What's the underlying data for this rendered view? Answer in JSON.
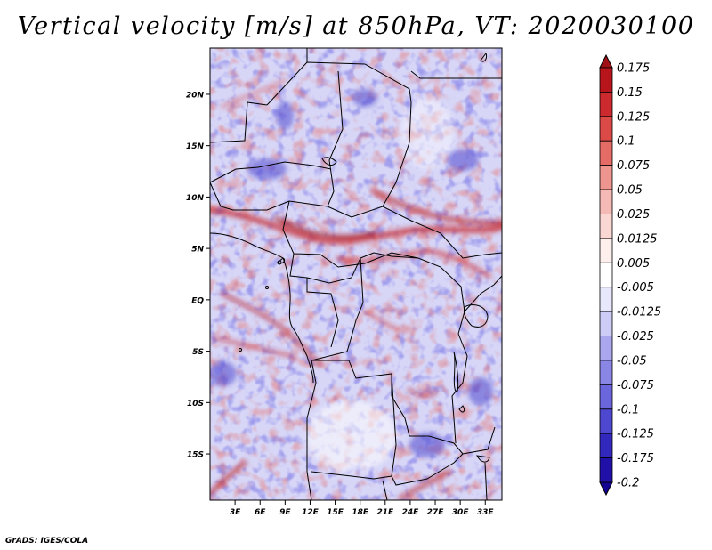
{
  "title": "Vertical velocity [m/s] at 850hPa, VT: 2020030100",
  "footer": "GrADS: IGES/COLA",
  "map": {
    "lat_labels": [
      {
        "lat": 20,
        "label": "20N"
      },
      {
        "lat": 15,
        "label": "15N"
      },
      {
        "lat": 10,
        "label": "10N"
      },
      {
        "lat": 5,
        "label": "5N"
      },
      {
        "lat": 0,
        "label": "EQ"
      },
      {
        "lat": -5,
        "label": "5S"
      },
      {
        "lat": -10,
        "label": "10S"
      },
      {
        "lat": -15,
        "label": "15S"
      }
    ],
    "lon_labels": [
      {
        "lon": 3,
        "label": "3E"
      },
      {
        "lon": 6,
        "label": "6E"
      },
      {
        "lon": 9,
        "label": "9E"
      },
      {
        "lon": 12,
        "label": "12E"
      },
      {
        "lon": 15,
        "label": "15E"
      },
      {
        "lon": 18,
        "label": "18E"
      },
      {
        "lon": 21,
        "label": "21E"
      },
      {
        "lon": 24,
        "label": "24E"
      },
      {
        "lon": 27,
        "label": "27E"
      },
      {
        "lon": 30,
        "label": "30E"
      },
      {
        "lon": 33,
        "label": "33E"
      }
    ],
    "lon_range": [
      0,
      35
    ],
    "lat_range": [
      -19.5,
      24.5
    ]
  },
  "legend": {
    "labels": [
      "0.175",
      "0.15",
      "0.125",
      "0.1",
      "0.075",
      "0.05",
      "0.025",
      "0.0125",
      "0.005",
      "-0.005",
      "-0.0125",
      "-0.025",
      "-0.05",
      "-0.075",
      "-0.1",
      "-0.125",
      "-0.175",
      "-0.2"
    ],
    "colors": [
      "#a00e16",
      "#b8141c",
      "#cc2a2e",
      "#dc4a48",
      "#e56c66",
      "#ee9590",
      "#f5bab5",
      "#fad7d2",
      "#fdf0ec",
      "#ffffff",
      "#e8e8fc",
      "#cdccf6",
      "#aaa7ef",
      "#8a86e6",
      "#6c66dc",
      "#4e47cf",
      "#3328bd",
      "#2110a8",
      "#140294"
    ]
  }
}
